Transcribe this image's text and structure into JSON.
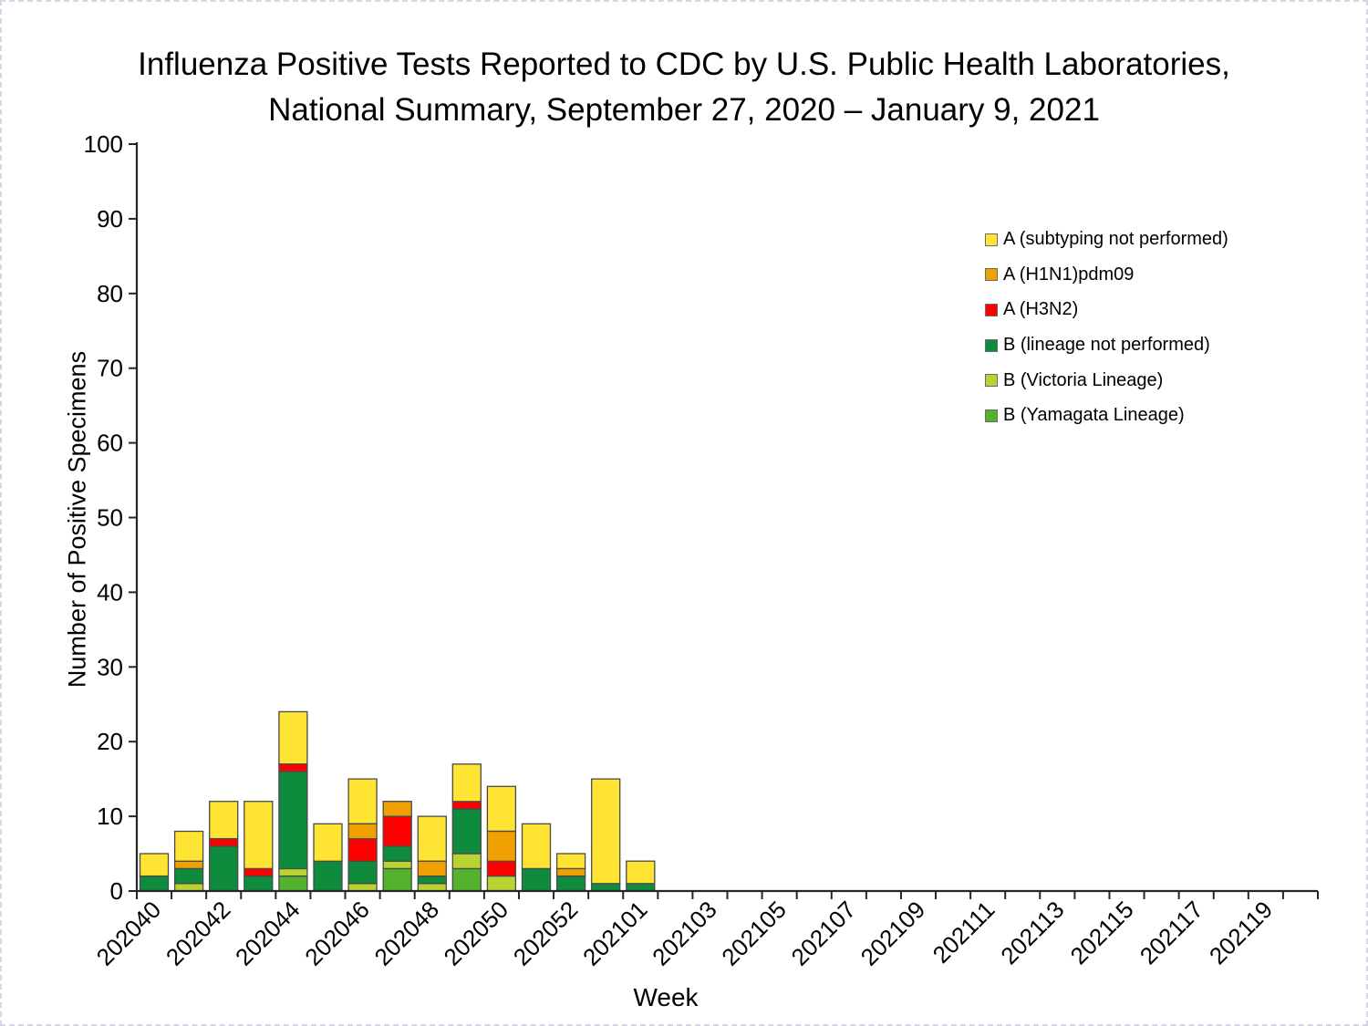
{
  "title": {
    "line1": "Influenza Positive Tests Reported to CDC by U.S. Public Health Laboratories,",
    "line2": "National Summary, September 27, 2020 – January 9, 2021"
  },
  "chart_data": {
    "type": "bar",
    "stacked": true,
    "title": "Influenza Positive Tests Reported to CDC by U.S. Public Health Laboratories, National Summary, September 27, 2020 – January 9, 2021",
    "xlabel": "Week",
    "ylabel": "Number of Positive Specimens",
    "ylim": [
      0,
      100
    ],
    "ytick_step": 10,
    "grid": false,
    "legend_position": "upper right, inside plot",
    "x_label_every": 2,
    "categories": [
      "202040",
      "202041",
      "202042",
      "202043",
      "202044",
      "202045",
      "202046",
      "202047",
      "202048",
      "202049",
      "202050",
      "202051",
      "202052",
      "202053",
      "202101",
      "202102",
      "202103",
      "202104",
      "202105",
      "202106",
      "202107",
      "202108",
      "202109",
      "202110",
      "202111",
      "202112",
      "202113",
      "202114",
      "202115",
      "202116",
      "202117",
      "202118",
      "202119",
      "202120"
    ],
    "series": [
      {
        "name": "B (Yamagata Lineage)",
        "color": "#55B22E",
        "values": [
          0,
          0,
          0,
          0,
          2,
          0,
          0,
          3,
          0,
          3,
          0,
          0,
          0,
          0,
          0,
          0,
          0,
          0,
          0,
          0,
          0,
          0,
          0,
          0,
          0,
          0,
          0,
          0,
          0,
          0,
          0,
          0,
          0,
          0
        ]
      },
      {
        "name": "B (Victoria Lineage)",
        "color": "#B9D333",
        "values": [
          0,
          1,
          0,
          0,
          1,
          0,
          1,
          1,
          1,
          2,
          2,
          0,
          0,
          0,
          0,
          0,
          0,
          0,
          0,
          0,
          0,
          0,
          0,
          0,
          0,
          0,
          0,
          0,
          0,
          0,
          0,
          0,
          0,
          0
        ]
      },
      {
        "name": "B (lineage not performed)",
        "color": "#0E8B3D",
        "values": [
          2,
          2,
          6,
          2,
          13,
          4,
          3,
          2,
          1,
          6,
          0,
          3,
          2,
          1,
          1,
          0,
          0,
          0,
          0,
          0,
          0,
          0,
          0,
          0,
          0,
          0,
          0,
          0,
          0,
          0,
          0,
          0,
          0,
          0
        ]
      },
      {
        "name": "A (H3N2)",
        "color": "#FF0000",
        "values": [
          0,
          0,
          1,
          1,
          1,
          0,
          3,
          4,
          0,
          1,
          2,
          0,
          0,
          0,
          0,
          0,
          0,
          0,
          0,
          0,
          0,
          0,
          0,
          0,
          0,
          0,
          0,
          0,
          0,
          0,
          0,
          0,
          0,
          0
        ]
      },
      {
        "name": "A (H1N1)pdm09",
        "color": "#F0A000",
        "values": [
          0,
          1,
          0,
          0,
          0,
          0,
          2,
          2,
          2,
          0,
          4,
          0,
          1,
          0,
          0,
          0,
          0,
          0,
          0,
          0,
          0,
          0,
          0,
          0,
          0,
          0,
          0,
          0,
          0,
          0,
          0,
          0,
          0,
          0
        ]
      },
      {
        "name": "A (subtyping not performed)",
        "color": "#FFE433",
        "values": [
          3,
          4,
          5,
          9,
          7,
          5,
          6,
          0,
          6,
          5,
          6,
          6,
          2,
          14,
          3,
          0,
          0,
          0,
          0,
          0,
          0,
          0,
          0,
          0,
          0,
          0,
          0,
          0,
          0,
          0,
          0,
          0,
          0,
          0
        ]
      }
    ],
    "legend_order_top_to_bottom": [
      "A (subtyping not performed)",
      "A (H1N1)pdm09",
      "A (H3N2)",
      "B (lineage not performed)",
      "B (Victoria Lineage)",
      "B (Yamagata Lineage)"
    ],
    "y_tick_labels": [
      "0",
      "10",
      "20",
      "30",
      "40",
      "50",
      "60",
      "70",
      "80",
      "90",
      "100"
    ],
    "x_tick_labels_shown": [
      "202040",
      "202042",
      "202044",
      "202046",
      "202048",
      "202050",
      "202052",
      "202101",
      "202103",
      "202105",
      "202107",
      "202109",
      "202111",
      "202113",
      "202115",
      "202117",
      "202119"
    ]
  },
  "style": {
    "axis_color": "#262626",
    "bar_border_color": "#4a4a4a",
    "page_border_color": "#d7d5e3"
  }
}
